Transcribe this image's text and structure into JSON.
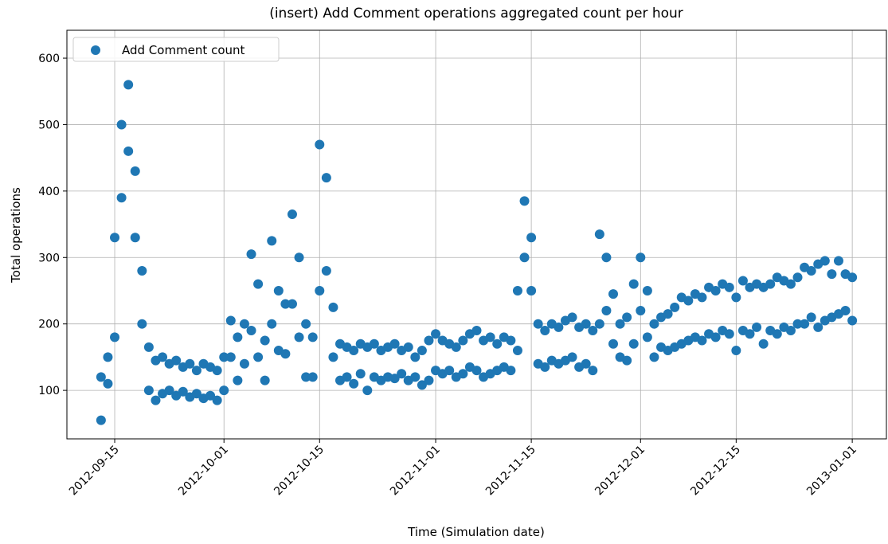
{
  "chart_data": {
    "type": "scatter",
    "title": "(insert) Add Comment operations aggregated count per hour",
    "xlabel": "Time (Simulation date)",
    "ylabel": "Total operations",
    "xlim": [
      "2012-09-08",
      "2013-01-06"
    ],
    "xticks": [
      "2012-09-15",
      "2012-10-01",
      "2012-10-15",
      "2012-11-01",
      "2012-11-15",
      "2012-12-01",
      "2012-12-15",
      "2013-01-01"
    ],
    "ylim": [
      27,
      642
    ],
    "yticks": [
      100,
      200,
      300,
      400,
      500,
      600
    ],
    "grid": true,
    "legend": "upper left",
    "x": [
      "2012-09-13",
      "2012-09-13",
      "2012-09-14",
      "2012-09-14",
      "2012-09-15",
      "2012-09-15",
      "2012-09-16",
      "2012-09-16",
      "2012-09-17",
      "2012-09-17",
      "2012-09-18",
      "2012-09-18",
      "2012-09-19",
      "2012-09-19",
      "2012-09-20",
      "2012-09-20",
      "2012-09-21",
      "2012-09-21",
      "2012-09-22",
      "2012-09-22",
      "2012-09-23",
      "2012-09-23",
      "2012-09-24",
      "2012-09-24",
      "2012-09-25",
      "2012-09-25",
      "2012-09-26",
      "2012-09-26",
      "2012-09-27",
      "2012-09-27",
      "2012-09-28",
      "2012-09-28",
      "2012-09-29",
      "2012-09-29",
      "2012-09-30",
      "2012-09-30",
      "2012-10-01",
      "2012-10-01",
      "2012-10-02",
      "2012-10-02",
      "2012-10-03",
      "2012-10-03",
      "2012-10-04",
      "2012-10-04",
      "2012-10-05",
      "2012-10-05",
      "2012-10-06",
      "2012-10-06",
      "2012-10-07",
      "2012-10-07",
      "2012-10-08",
      "2012-10-08",
      "2012-10-09",
      "2012-10-09",
      "2012-10-10",
      "2012-10-10",
      "2012-10-11",
      "2012-10-11",
      "2012-10-12",
      "2012-10-12",
      "2012-10-13",
      "2012-10-13",
      "2012-10-14",
      "2012-10-14",
      "2012-10-15",
      "2012-10-15",
      "2012-10-16",
      "2012-10-16",
      "2012-10-17",
      "2012-10-17",
      "2012-10-18",
      "2012-10-18",
      "2012-10-19",
      "2012-10-19",
      "2012-10-20",
      "2012-10-20",
      "2012-10-21",
      "2012-10-21",
      "2012-10-22",
      "2012-10-22",
      "2012-10-23",
      "2012-10-23",
      "2012-10-24",
      "2012-10-24",
      "2012-10-25",
      "2012-10-25",
      "2012-10-26",
      "2012-10-26",
      "2012-10-27",
      "2012-10-27",
      "2012-10-28",
      "2012-10-28",
      "2012-10-29",
      "2012-10-29",
      "2012-10-30",
      "2012-10-30",
      "2012-10-31",
      "2012-10-31",
      "2012-11-01",
      "2012-11-01",
      "2012-11-02",
      "2012-11-02",
      "2012-11-03",
      "2012-11-03",
      "2012-11-04",
      "2012-11-04",
      "2012-11-05",
      "2012-11-05",
      "2012-11-06",
      "2012-11-06",
      "2012-11-07",
      "2012-11-07",
      "2012-11-08",
      "2012-11-08",
      "2012-11-09",
      "2012-11-09",
      "2012-11-10",
      "2012-11-10",
      "2012-11-11",
      "2012-11-11",
      "2012-11-12",
      "2012-11-12",
      "2012-11-13",
      "2012-11-13",
      "2012-11-14",
      "2012-11-14",
      "2012-11-15",
      "2012-11-15",
      "2012-11-16",
      "2012-11-16",
      "2012-11-17",
      "2012-11-17",
      "2012-11-18",
      "2012-11-18",
      "2012-11-19",
      "2012-11-19",
      "2012-11-20",
      "2012-11-20",
      "2012-11-21",
      "2012-11-21",
      "2012-11-22",
      "2012-11-22",
      "2012-11-23",
      "2012-11-23",
      "2012-11-24",
      "2012-11-24",
      "2012-11-25",
      "2012-11-25",
      "2012-11-26",
      "2012-11-26",
      "2012-11-27",
      "2012-11-27",
      "2012-11-28",
      "2012-11-28",
      "2012-11-29",
      "2012-11-29",
      "2012-11-30",
      "2012-11-30",
      "2012-12-01",
      "2012-12-01",
      "2012-12-02",
      "2012-12-02",
      "2012-12-03",
      "2012-12-03",
      "2012-12-04",
      "2012-12-04",
      "2012-12-05",
      "2012-12-05",
      "2012-12-06",
      "2012-12-06",
      "2012-12-07",
      "2012-12-07",
      "2012-12-08",
      "2012-12-08",
      "2012-12-09",
      "2012-12-09",
      "2012-12-10",
      "2012-12-10",
      "2012-12-11",
      "2012-12-11",
      "2012-12-12",
      "2012-12-12",
      "2012-12-13",
      "2012-12-13",
      "2012-12-14",
      "2012-12-14",
      "2012-12-15",
      "2012-12-15",
      "2012-12-16",
      "2012-12-16",
      "2012-12-17",
      "2012-12-17",
      "2012-12-18",
      "2012-12-18",
      "2012-12-19",
      "2012-12-19",
      "2012-12-20",
      "2012-12-20",
      "2012-12-21",
      "2012-12-21",
      "2012-12-22",
      "2012-12-22",
      "2012-12-23",
      "2012-12-23",
      "2012-12-24",
      "2012-12-24",
      "2012-12-25",
      "2012-12-25",
      "2012-12-26",
      "2012-12-26",
      "2012-12-27",
      "2012-12-27",
      "2012-12-28",
      "2012-12-28",
      "2012-12-29",
      "2012-12-29",
      "2012-12-30",
      "2012-12-30",
      "2012-12-31",
      "2012-12-31",
      "2013-01-01",
      "2013-01-01"
    ],
    "series": [
      {
        "name": "Add Comment count",
        "color": "#1f77b4",
        "values": [
          55,
          120,
          110,
          150,
          180,
          330,
          390,
          500,
          460,
          560,
          330,
          430,
          200,
          280,
          100,
          165,
          85,
          145,
          95,
          150,
          100,
          140,
          92,
          145,
          98,
          135,
          90,
          140,
          95,
          130,
          88,
          140,
          92,
          135,
          85,
          130,
          100,
          150,
          150,
          205,
          115,
          180,
          140,
          200,
          190,
          305,
          150,
          260,
          115,
          175,
          200,
          325,
          160,
          250,
          155,
          230,
          230,
          365,
          180,
          300,
          120,
          200,
          120,
          180,
          250,
          470,
          280,
          420,
          150,
          225,
          115,
          170,
          120,
          165,
          110,
          160,
          125,
          170,
          100,
          165,
          120,
          170,
          115,
          160,
          120,
          165,
          118,
          170,
          125,
          160,
          115,
          165,
          120,
          150,
          108,
          160,
          115,
          175,
          130,
          185,
          125,
          175,
          130,
          170,
          120,
          165,
          125,
          175,
          135,
          185,
          130,
          190,
          120,
          175,
          125,
          180,
          130,
          170,
          135,
          180,
          130,
          175,
          160,
          250,
          300,
          385,
          250,
          330,
          140,
          200,
          135,
          190,
          145,
          200,
          140,
          195,
          145,
          205,
          150,
          210,
          135,
          195,
          140,
          200,
          130,
          190,
          200,
          335,
          220,
          300,
          170,
          245,
          150,
          200,
          145,
          210,
          170,
          260,
          220,
          300,
          180,
          250,
          150,
          200,
          165,
          210,
          160,
          215,
          165,
          225,
          170,
          240,
          175,
          235,
          180,
          245,
          175,
          240,
          185,
          255,
          180,
          250,
          190,
          260,
          185,
          255,
          160,
          240,
          190,
          265,
          185,
          255,
          195,
          260,
          170,
          255,
          190,
          260,
          185,
          270,
          195,
          265,
          190,
          260,
          200,
          270,
          200,
          285,
          210,
          280,
          195,
          290,
          205,
          295,
          210,
          275,
          215,
          295,
          220,
          275,
          205,
          270
        ]
      }
    ]
  }
}
